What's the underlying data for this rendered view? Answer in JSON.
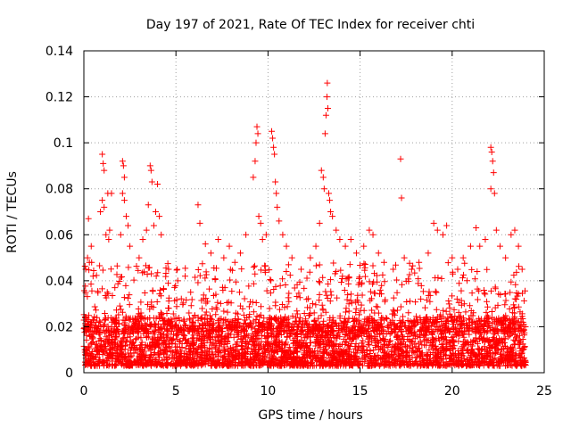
{
  "chart_data": {
    "type": "scatter",
    "title": "Day 197 of 2021, Rate Of TEC Index for receiver chti",
    "xlabel": "GPS time / hours",
    "ylabel": "ROTI / TECUs",
    "xlim": [
      0,
      25
    ],
    "ylim": [
      0,
      0.14
    ],
    "x_ticks": [
      0,
      5,
      10,
      15,
      20,
      25
    ],
    "x_tick_labels": [
      "0",
      "5",
      "10",
      "15",
      "20",
      "25"
    ],
    "y_ticks": [
      0,
      0.02,
      0.04,
      0.06,
      0.08,
      0.1,
      0.12,
      0.14
    ],
    "y_tick_labels": [
      "0",
      "0.02",
      "0.04",
      "0.06",
      "0.08",
      "0.1",
      "0.12",
      "0.14"
    ],
    "grid": true,
    "marker": "+",
    "color": "#ff0000",
    "series": [
      {
        "name": "ROTI",
        "points": [
          [
            0.1,
            0.045
          ],
          [
            0.2,
            0.05
          ],
          [
            0.25,
            0.067
          ],
          [
            0.3,
            0.048
          ],
          [
            0.4,
            0.055
          ],
          [
            0.5,
            0.042
          ],
          [
            0.9,
            0.07
          ],
          [
            1.0,
            0.095
          ],
          [
            1.05,
            0.091
          ],
          [
            1.1,
            0.088
          ],
          [
            1.0,
            0.075
          ],
          [
            1.1,
            0.072
          ],
          [
            1.2,
            0.06
          ],
          [
            1.3,
            0.078
          ],
          [
            1.35,
            0.058
          ],
          [
            1.4,
            0.062
          ],
          [
            1.5,
            0.078
          ],
          [
            2.0,
            0.06
          ],
          [
            2.1,
            0.092
          ],
          [
            2.15,
            0.09
          ],
          [
            2.2,
            0.085
          ],
          [
            2.1,
            0.078
          ],
          [
            2.2,
            0.075
          ],
          [
            2.3,
            0.068
          ],
          [
            2.4,
            0.064
          ],
          [
            2.5,
            0.055
          ],
          [
            3.0,
            0.05
          ],
          [
            3.2,
            0.058
          ],
          [
            3.4,
            0.062
          ],
          [
            3.5,
            0.073
          ],
          [
            3.6,
            0.09
          ],
          [
            3.65,
            0.088
          ],
          [
            3.7,
            0.083
          ],
          [
            3.8,
            0.064
          ],
          [
            3.9,
            0.07
          ],
          [
            4.0,
            0.082
          ],
          [
            4.1,
            0.068
          ],
          [
            4.2,
            0.06
          ],
          [
            4.6,
            0.045
          ],
          [
            5.1,
            0.04
          ],
          [
            5.5,
            0.042
          ],
          [
            5.8,
            0.035
          ],
          [
            6.2,
            0.073
          ],
          [
            6.3,
            0.065
          ],
          [
            6.6,
            0.056
          ],
          [
            6.9,
            0.052
          ],
          [
            7.3,
            0.058
          ],
          [
            7.6,
            0.05
          ],
          [
            7.9,
            0.055
          ],
          [
            8.2,
            0.048
          ],
          [
            8.5,
            0.052
          ],
          [
            8.8,
            0.06
          ],
          [
            9.2,
            0.085
          ],
          [
            9.3,
            0.092
          ],
          [
            9.35,
            0.1
          ],
          [
            9.4,
            0.107
          ],
          [
            9.45,
            0.104
          ],
          [
            9.5,
            0.068
          ],
          [
            9.6,
            0.065
          ],
          [
            9.7,
            0.058
          ],
          [
            9.9,
            0.06
          ],
          [
            10.2,
            0.105
          ],
          [
            10.25,
            0.102
          ],
          [
            10.3,
            0.098
          ],
          [
            10.35,
            0.095
          ],
          [
            10.4,
            0.083
          ],
          [
            10.45,
            0.078
          ],
          [
            10.5,
            0.072
          ],
          [
            10.6,
            0.066
          ],
          [
            10.8,
            0.06
          ],
          [
            11.0,
            0.055
          ],
          [
            11.3,
            0.05
          ],
          [
            11.8,
            0.045
          ],
          [
            12.3,
            0.05
          ],
          [
            12.6,
            0.055
          ],
          [
            12.8,
            0.065
          ],
          [
            12.9,
            0.088
          ],
          [
            13.0,
            0.085
          ],
          [
            13.05,
            0.08
          ],
          [
            13.1,
            0.104
          ],
          [
            13.15,
            0.112
          ],
          [
            13.2,
            0.12
          ],
          [
            13.22,
            0.126
          ],
          [
            13.25,
            0.115
          ],
          [
            13.3,
            0.078
          ],
          [
            13.35,
            0.075
          ],
          [
            13.4,
            0.07
          ],
          [
            13.5,
            0.068
          ],
          [
            13.7,
            0.062
          ],
          [
            13.9,
            0.058
          ],
          [
            14.2,
            0.055
          ],
          [
            14.5,
            0.058
          ],
          [
            14.8,
            0.052
          ],
          [
            15.2,
            0.055
          ],
          [
            15.5,
            0.062
          ],
          [
            15.7,
            0.06
          ],
          [
            16.0,
            0.052
          ],
          [
            16.3,
            0.048
          ],
          [
            16.8,
            0.045
          ],
          [
            17.2,
            0.093
          ],
          [
            17.25,
            0.076
          ],
          [
            17.4,
            0.05
          ],
          [
            17.8,
            0.045
          ],
          [
            18.2,
            0.048
          ],
          [
            18.7,
            0.052
          ],
          [
            19.0,
            0.065
          ],
          [
            19.2,
            0.062
          ],
          [
            19.5,
            0.06
          ],
          [
            19.7,
            0.064
          ],
          [
            20.0,
            0.05
          ],
          [
            20.3,
            0.045
          ],
          [
            20.6,
            0.05
          ],
          [
            21.0,
            0.055
          ],
          [
            21.3,
            0.063
          ],
          [
            21.5,
            0.055
          ],
          [
            21.8,
            0.058
          ],
          [
            22.1,
            0.098
          ],
          [
            22.15,
            0.096
          ],
          [
            22.2,
            0.092
          ],
          [
            22.25,
            0.087
          ],
          [
            22.1,
            0.08
          ],
          [
            22.3,
            0.078
          ],
          [
            22.4,
            0.062
          ],
          [
            22.6,
            0.055
          ],
          [
            22.9,
            0.05
          ],
          [
            23.2,
            0.06
          ],
          [
            23.4,
            0.062
          ],
          [
            23.6,
            0.055
          ],
          [
            23.8,
            0.045
          ]
        ]
      }
    ],
    "baseline": {
      "x_range": [
        0,
        24
      ],
      "y_range": [
        0.003,
        0.024
      ],
      "dense": true
    }
  }
}
